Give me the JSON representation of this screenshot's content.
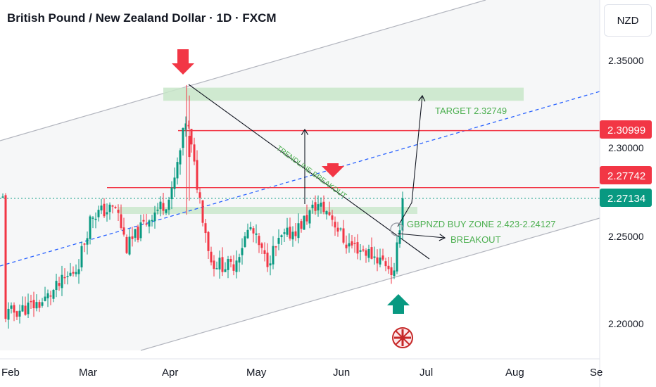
{
  "header": {
    "title": "British Pound / New Zealand Dollar · 1D · FXCM",
    "currency": "NZD"
  },
  "colors": {
    "bull": "#089981",
    "bear": "#f23645",
    "accent_green": "#4caf50",
    "zone": "#c8e6c9",
    "channel_line": "#b2b5be",
    "dash_line": "#2962ff"
  },
  "chart_data": {
    "type": "candlestick",
    "symbol": "GBPNZD",
    "timeframe": "1D",
    "ylim": [
      2.184,
      2.378
    ],
    "y_ticks": [
      "2.35000",
      "2.30000",
      "2.25000",
      "2.20000"
    ],
    "x_ticks": [
      "Feb",
      "Mar",
      "Apr",
      "May",
      "Jun",
      "Jul",
      "Aug",
      "Se"
    ],
    "price_labels": [
      {
        "label": "2.30999",
        "type": "red"
      },
      {
        "label": "2.27742",
        "type": "red"
      },
      {
        "label": "2.27134",
        "type": "green"
      }
    ],
    "levels": [
      2.30999,
      2.27742,
      2.27134
    ],
    "target_zone": {
      "label": "TARGET 2.32749",
      "low": 2.327,
      "high": 2.3345
    },
    "buy_zone": {
      "label": "GBPNZD BUY ZONE 2.423-2.24127"
    },
    "annotations": [
      "TRENDLINE BREAKOUT",
      "BREAKOUT"
    ]
  }
}
